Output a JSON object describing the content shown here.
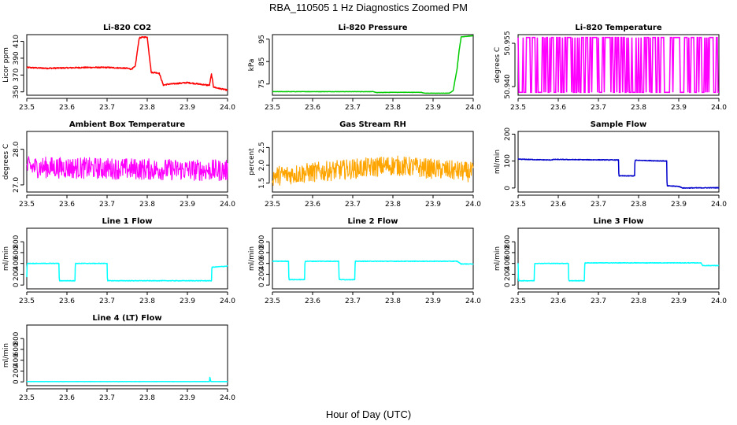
{
  "title": "RBA_110505  1 Hz Diagnostics Zoomed PM",
  "xlabel": "Hour of Day (UTC)",
  "chart_data": [
    {
      "type": "line",
      "title": "Li-820 CO2",
      "ylabel": "Licor ppm",
      "color": "#ff0000",
      "xlim": [
        23.5,
        24.0
      ],
      "ylim": [
        346,
        418
      ],
      "yticks": [
        "350",
        "370",
        "390",
        "410"
      ],
      "ytick_values": [
        350,
        370,
        390,
        410
      ],
      "xticks": [
        "23.5",
        "23.6",
        "23.7",
        "23.8",
        "23.9",
        "24.0"
      ],
      "noise": 1.2,
      "x": [
        23.5,
        23.55,
        23.6,
        23.65,
        23.7,
        23.75,
        23.76,
        23.77,
        23.78,
        23.79,
        23.8,
        23.81,
        23.82,
        23.83,
        23.84,
        23.85,
        23.9,
        23.95,
        23.955,
        23.96,
        23.965,
        23.97,
        24.0
      ],
      "y": [
        379,
        378,
        378.5,
        379,
        379,
        378,
        377,
        380,
        414,
        415,
        415,
        373,
        373,
        372,
        358,
        359,
        361,
        358,
        358,
        371,
        356,
        355,
        352
      ]
    },
    {
      "type": "line",
      "title": "Li-820 Pressure",
      "ylabel": "kPa",
      "color": "#00cc00",
      "xlim": [
        23.5,
        24.0
      ],
      "ylim": [
        70,
        97
      ],
      "yticks": [
        "75",
        "85",
        "95"
      ],
      "ytick_values": [
        75,
        85,
        95
      ],
      "xticks": [
        "23.5",
        "23.6",
        "23.7",
        "23.8",
        "23.9",
        "24.0"
      ],
      "noise": 0.1,
      "x": [
        23.5,
        23.7,
        23.75,
        23.76,
        23.8,
        23.87,
        23.88,
        23.94,
        23.95,
        23.96,
        23.965,
        23.97,
        24.0
      ],
      "y": [
        71.6,
        71.6,
        71.6,
        71.2,
        71.3,
        71.3,
        70.9,
        70.9,
        72,
        82,
        90,
        96,
        96.5
      ]
    },
    {
      "type": "spikes",
      "title": "Li-820 Temperature",
      "ylabel": "degrees C",
      "color": "#ff00ff",
      "xlim": [
        23.5,
        24.0
      ],
      "ylim": [
        50.937,
        50.958
      ],
      "yticks": [
        "50.940",
        "50.955"
      ],
      "ytick_values": [
        50.94,
        50.955
      ],
      "xticks": [
        "23.5",
        "23.6",
        "23.7",
        "23.8",
        "23.9",
        "24.0"
      ],
      "low": 50.938,
      "high": 50.957,
      "density": 0.45
    },
    {
      "type": "line",
      "title": "Ambient Box Temperature",
      "ylabel": "degrees C",
      "color": "#ff00ff",
      "xlim": [
        23.5,
        24.0
      ],
      "ylim": [
        26.8,
        28.5
      ],
      "yticks": [
        "27.0",
        "28.0"
      ],
      "ytick_values": [
        27.0,
        28.0
      ],
      "xticks": [
        "23.5",
        "23.6",
        "23.7",
        "23.8",
        "23.9",
        "24.0"
      ],
      "noise": 0.3,
      "jitter": true,
      "x": [
        23.5,
        24.0
      ],
      "y": [
        27.5,
        27.4
      ]
    },
    {
      "type": "line",
      "title": "Gas Stream RH",
      "ylabel": "percent",
      "color": "#ffa500",
      "xlim": [
        23.5,
        24.0
      ],
      "ylim": [
        1.25,
        2.95
      ],
      "yticks": [
        "1.5",
        "2.0",
        "2.5"
      ],
      "ytick_values": [
        1.5,
        2.0,
        2.5
      ],
      "xticks": [
        "23.5",
        "23.6",
        "23.7",
        "23.8",
        "23.9",
        "24.0"
      ],
      "noise": 0.28,
      "jitter": true,
      "x": [
        23.5,
        23.6,
        23.7,
        23.8,
        23.9,
        24.0
      ],
      "y": [
        1.7,
        1.8,
        1.9,
        2.0,
        1.9,
        1.8
      ]
    },
    {
      "type": "line",
      "title": "Sample Flow",
      "ylabel": "ml/min",
      "color": "#0000cc",
      "xlim": [
        23.5,
        24.0
      ],
      "ylim": [
        -15,
        210
      ],
      "yticks": [
        "0",
        "100",
        "200"
      ],
      "ytick_values": [
        0,
        100,
        200
      ],
      "xticks": [
        "23.5",
        "23.6",
        "23.7",
        "23.8",
        "23.9",
        "24.0"
      ],
      "noise": 2,
      "x": [
        23.5,
        23.58,
        23.59,
        23.75,
        23.751,
        23.79,
        23.791,
        23.87,
        23.871,
        23.9,
        23.91,
        24.0
      ],
      "y": [
        107,
        104,
        106,
        104,
        45,
        45,
        103,
        100,
        8,
        6,
        0,
        1
      ]
    },
    {
      "type": "line",
      "title": "Line 1 Flow",
      "ylabel": "ml/min",
      "color": "#00ffff",
      "xlim": [
        23.5,
        24.0
      ],
      "ylim": [
        -70,
        1050
      ],
      "yticks": [
        "0",
        "200",
        "400",
        "600",
        "800"
      ],
      "ytick_values": [
        0,
        200,
        400,
        600,
        800
      ],
      "xticks": [
        "23.5",
        "23.6",
        "23.7",
        "23.8",
        "23.9",
        "24.0"
      ],
      "noise": 8,
      "x": [
        23.5,
        23.501,
        23.58,
        23.581,
        23.62,
        23.621,
        23.7,
        23.701,
        23.96,
        23.961,
        24.0
      ],
      "y": [
        150,
        400,
        400,
        80,
        80,
        400,
        400,
        80,
        80,
        330,
        350
      ]
    },
    {
      "type": "line",
      "title": "Line 2 Flow",
      "ylabel": "ml/min",
      "color": "#00ffff",
      "xlim": [
        23.5,
        24.0
      ],
      "ylim": [
        -70,
        1050
      ],
      "yticks": [
        "0",
        "200",
        "400",
        "600",
        "800"
      ],
      "ytick_values": [
        0,
        200,
        400,
        600,
        800
      ],
      "xticks": [
        "23.5",
        "23.6",
        "23.7",
        "23.8",
        "23.9",
        "24.0"
      ],
      "noise": 8,
      "x": [
        23.5,
        23.54,
        23.541,
        23.58,
        23.581,
        23.665,
        23.666,
        23.705,
        23.706,
        23.96,
        23.97,
        24.0
      ],
      "y": [
        440,
        440,
        100,
        100,
        440,
        440,
        100,
        100,
        440,
        440,
        390,
        390
      ]
    },
    {
      "type": "line",
      "title": "Line 3 Flow",
      "ylabel": "ml/min",
      "color": "#00ffff",
      "xlim": [
        23.5,
        24.0
      ],
      "ylim": [
        -70,
        1050
      ],
      "yticks": [
        "0",
        "200",
        "400",
        "600",
        "800"
      ],
      "ytick_values": [
        0,
        200,
        400,
        600,
        800
      ],
      "xticks": [
        "23.5",
        "23.6",
        "23.7",
        "23.8",
        "23.9",
        "24.0"
      ],
      "noise": 8,
      "x": [
        23.5,
        23.501,
        23.54,
        23.541,
        23.625,
        23.626,
        23.665,
        23.666,
        23.955,
        23.96,
        24.0
      ],
      "y": [
        400,
        80,
        80,
        400,
        400,
        80,
        80,
        410,
        410,
        360,
        360
      ]
    },
    {
      "type": "line",
      "title": "Line 4 (LT) Flow",
      "ylabel": "ml/min",
      "color": "#00ffff",
      "xlim": [
        23.5,
        24.0
      ],
      "ylim": [
        -70,
        1050
      ],
      "yticks": [
        "0",
        "200",
        "400",
        "600",
        "800"
      ],
      "ytick_values": [
        0,
        200,
        400,
        600,
        800
      ],
      "xticks": [
        "23.5",
        "23.6",
        "23.7",
        "23.8",
        "23.9",
        "24.0"
      ],
      "noise": 3,
      "x": [
        23.5,
        23.955,
        23.956,
        23.958,
        23.96,
        24.0
      ],
      "y": [
        5,
        5,
        100,
        10,
        5,
        5
      ]
    }
  ]
}
